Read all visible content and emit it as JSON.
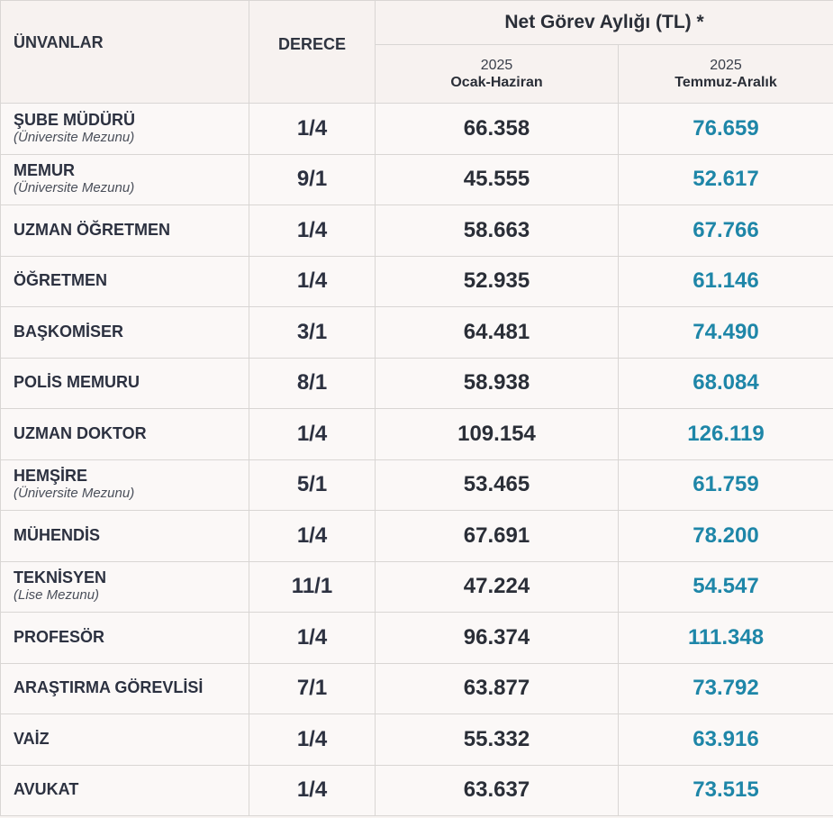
{
  "header": {
    "title_col": "ÜNVANLAR",
    "grade_col": "DERECE",
    "main_label": "Net Görev Aylığı (TL) *",
    "period1_year": "2025",
    "period1_range": "Ocak-Haziran",
    "period2_year": "2025",
    "period2_range": "Temmuz-Aralık"
  },
  "colors": {
    "second_period_text": "#1e86a8",
    "background": "#f7f3f1",
    "border": "#d9d6d4"
  },
  "rows": [
    {
      "title": "ŞUBE MÜDÜRÜ",
      "note": "(Üniversite Mezunu)",
      "grade": "1/4",
      "h1": "66.358",
      "h2": "76.659"
    },
    {
      "title": "MEMUR",
      "note": "(Üniversite Mezunu)",
      "grade": "9/1",
      "h1": "45.555",
      "h2": "52.617"
    },
    {
      "title": "UZMAN ÖĞRETMEN",
      "note": "",
      "grade": "1/4",
      "h1": "58.663",
      "h2": "67.766"
    },
    {
      "title": "ÖĞRETMEN",
      "note": "",
      "grade": "1/4",
      "h1": "52.935",
      "h2": "61.146"
    },
    {
      "title": "BAŞKOMİSER",
      "note": "",
      "grade": "3/1",
      "h1": "64.481",
      "h2": "74.490"
    },
    {
      "title": "POLİS MEMURU",
      "note": "",
      "grade": "8/1",
      "h1": "58.938",
      "h2": "68.084"
    },
    {
      "title": "UZMAN DOKTOR",
      "note": "",
      "grade": "1/4",
      "h1": "109.154",
      "h2": "126.119"
    },
    {
      "title": "HEMŞİRE",
      "note": "(Üniversite Mezunu)",
      "grade": "5/1",
      "h1": "53.465",
      "h2": "61.759"
    },
    {
      "title": "MÜHENDİS",
      "note": "",
      "grade": "1/4",
      "h1": "67.691",
      "h2": "78.200"
    },
    {
      "title": "TEKNİSYEN",
      "note": "(Lise Mezunu)",
      "grade": "11/1",
      "h1": "47.224",
      "h2": "54.547"
    },
    {
      "title": "PROFESÖR",
      "note": "",
      "grade": "1/4",
      "h1": "96.374",
      "h2": "111.348"
    },
    {
      "title": "ARAŞTIRMA GÖREVLİSİ",
      "note": "",
      "grade": "7/1",
      "h1": "63.877",
      "h2": "73.792"
    },
    {
      "title": "VAİZ",
      "note": "",
      "grade": "1/4",
      "h1": "55.332",
      "h2": "63.916"
    },
    {
      "title": "AVUKAT",
      "note": "",
      "grade": "1/4",
      "h1": "63.637",
      "h2": "73.515"
    }
  ]
}
